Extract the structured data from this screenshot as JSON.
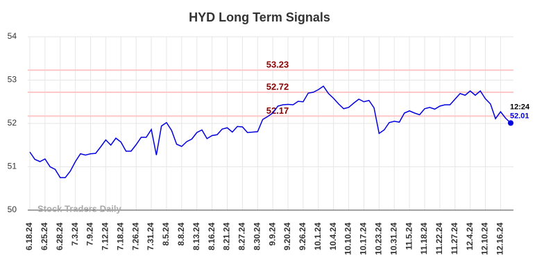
{
  "chart_data": {
    "type": "line",
    "title": "HYD Long Term Signals",
    "categories": [
      "6.18.24",
      null,
      null,
      "6.25.24",
      null,
      null,
      "6.28.24",
      null,
      null,
      "7.3.24",
      null,
      null,
      "7.9.24",
      null,
      null,
      "7.12.24",
      null,
      null,
      "7.18.24",
      null,
      null,
      "7.26.24",
      null,
      null,
      "7.31.24",
      null,
      null,
      "8.5.24",
      null,
      null,
      "8.8.24",
      null,
      null,
      "8.13.24",
      null,
      null,
      "8.16.24",
      null,
      null,
      "8.21.24",
      null,
      null,
      "8.27.24",
      null,
      null,
      "8.30.24",
      null,
      null,
      "9.9.24",
      null,
      null,
      "9.20.24",
      null,
      null,
      "9.26.24",
      null,
      null,
      "10.1.24",
      null,
      null,
      "10.4.24",
      null,
      null,
      "10.10.24",
      null,
      null,
      "10.17.24",
      null,
      null,
      "10.23.24",
      null,
      null,
      "10.31.24",
      null,
      null,
      "11.5.24",
      null,
      null,
      "11.18.24",
      null,
      null,
      "11.22.24",
      null,
      null,
      "11.27.24",
      null,
      null,
      "12.4.24",
      null,
      null,
      "12.10.24",
      null,
      null,
      "12.16.24",
      null,
      null
    ],
    "series": [
      {
        "color": "#0000e0",
        "values": [
          51.34,
          51.17,
          51.12,
          51.18,
          51.0,
          50.94,
          50.75,
          50.75,
          50.9,
          51.12,
          51.3,
          51.27,
          51.3,
          51.31,
          51.46,
          51.62,
          51.5,
          51.66,
          51.57,
          51.36,
          51.36,
          51.51,
          51.68,
          51.68,
          51.86,
          51.27,
          51.94,
          52.02,
          51.84,
          51.52,
          51.47,
          51.58,
          51.64,
          51.79,
          51.85,
          51.65,
          51.72,
          51.74,
          51.87,
          51.9,
          51.8,
          51.93,
          51.92,
          51.79,
          51.8,
          51.81,
          52.09,
          52.16,
          52.24,
          52.4,
          52.43,
          52.44,
          52.43,
          52.51,
          52.5,
          52.7,
          52.72,
          52.78,
          52.86,
          52.69,
          52.58,
          52.45,
          52.34,
          52.37,
          52.47,
          52.56,
          52.5,
          52.53,
          52.36,
          51.77,
          51.85,
          52.02,
          52.05,
          52.03,
          52.24,
          52.29,
          52.24,
          52.2,
          52.34,
          52.37,
          52.33,
          52.4,
          52.43,
          52.43,
          52.56,
          52.69,
          52.65,
          52.75,
          52.65,
          52.75,
          52.57,
          52.45,
          52.11,
          52.27,
          52.12,
          52.01
        ]
      }
    ],
    "levels": [
      53.23,
      52.72,
      52.17
    ],
    "level_color": "#ffc8c8",
    "level_label_color": "#8b0000",
    "last_time": "12:24",
    "watermark": "Stock Traders Daily",
    "ylim": [
      50,
      54
    ],
    "yticks": [
      50,
      51,
      52,
      53,
      54
    ],
    "grid": true
  }
}
